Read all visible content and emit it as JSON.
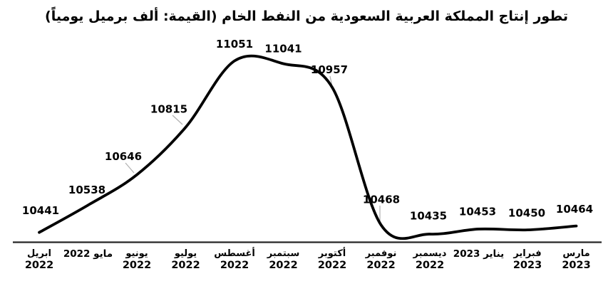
{
  "title": "تطور إنتاج المملكة العربية السعودية من النفط الخام (القيمة: ألف برميل يومياً)",
  "chart_data": {
    "type": "line",
    "title": "تطور إنتاج المملكة العربية السعودية من النفط الخام (القيمة: ألف برميل يومياً)",
    "value_unit": "ألف برميل يومياً",
    "categories": [
      "ابريل 2022",
      "مايو 2022",
      "يونيو 2022",
      "يوليو 2022",
      "أغسطس 2022",
      "سبتمبر 2022",
      "أكتوبر 2022",
      "نوفمبر 2022",
      "ديسمبر 2022",
      "يناير 2023",
      "فبراير 2023",
      "مارس 2023"
    ],
    "values": [
      10441,
      10538,
      10646,
      10815,
      11051,
      11041,
      10957,
      10468,
      10435,
      10453,
      10450,
      10464
    ],
    "xlabel": "",
    "ylabel": "",
    "ylim": [
      10400,
      11100
    ],
    "smooth": true,
    "data_labels_shown": true,
    "line_color": "#000000",
    "axis_line_color": "#262626",
    "leader_line_color": "#b3b3b3",
    "y_axis_visible": false,
    "grid": false,
    "legend_position": "none"
  }
}
